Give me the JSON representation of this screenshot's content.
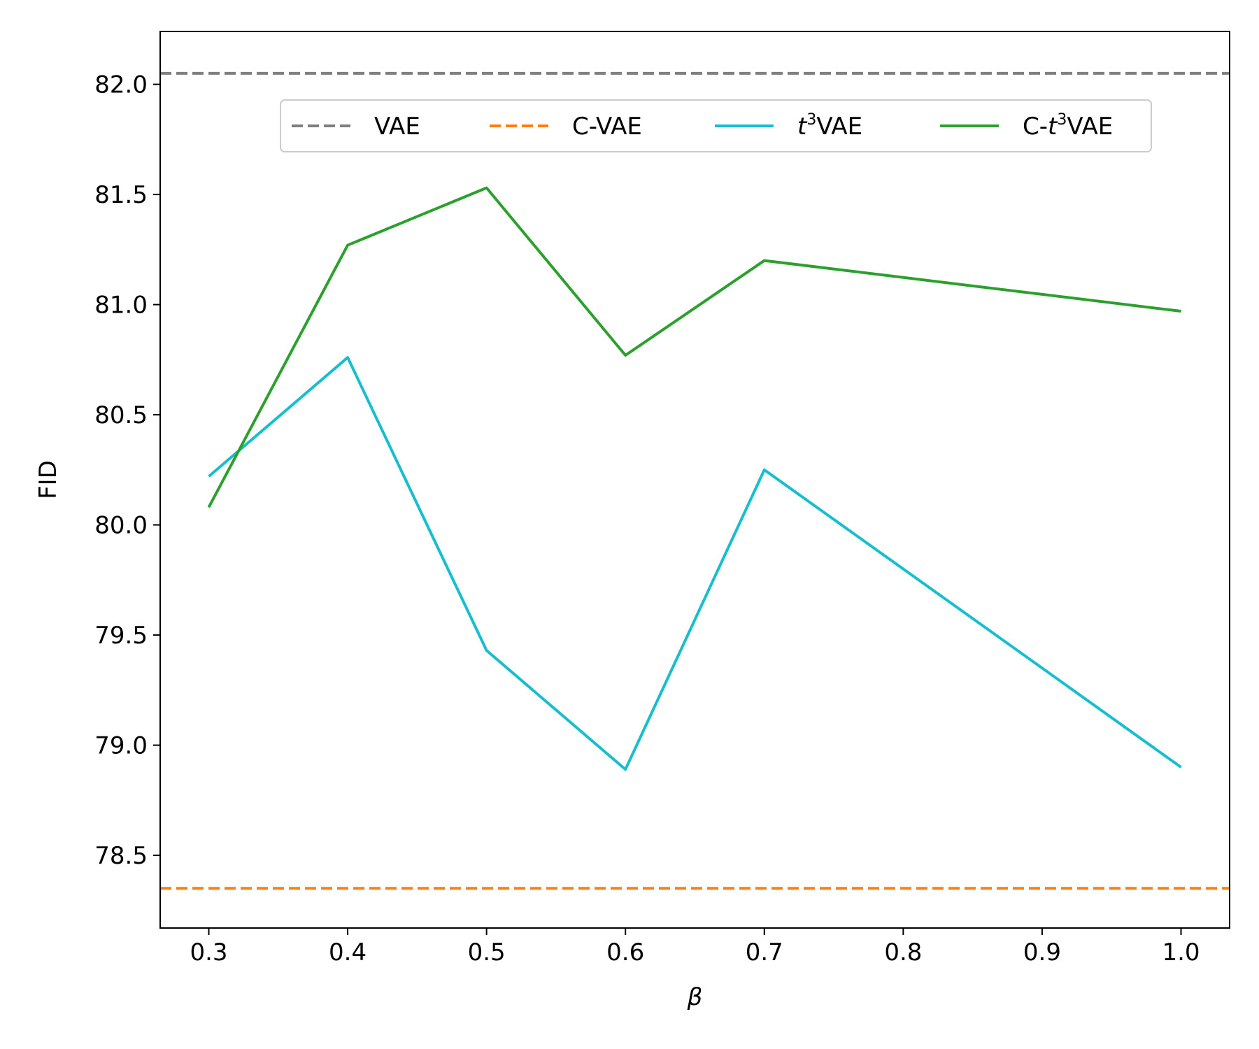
{
  "chart_data": {
    "type": "line",
    "title": "",
    "xlabel": "β",
    "ylabel": "FID",
    "xlim": [
      0.265,
      1.035
    ],
    "ylim": [
      78.17,
      82.24
    ],
    "x_ticks": [
      "0.3",
      "0.4",
      "0.5",
      "0.6",
      "0.7",
      "0.8",
      "0.9",
      "1.0"
    ],
    "y_ticks": [
      "78.5",
      "79.0",
      "79.5",
      "80.0",
      "80.5",
      "81.0",
      "81.5",
      "82.0"
    ],
    "grid": false,
    "legend_position": "upper center",
    "series": [
      {
        "name": "VAE",
        "legend_label": {
          "pre": "",
          "italic": "",
          "sup": "",
          "post": "VAE"
        },
        "color": "#7f7f7f",
        "style": "dashed",
        "kind": "hline",
        "y": 82.05
      },
      {
        "name": "C-VAE",
        "legend_label": {
          "pre": "",
          "italic": "",
          "sup": "",
          "post": "C-VAE"
        },
        "color": "#ff7f0e",
        "style": "dashed",
        "kind": "hline",
        "y": 78.35
      },
      {
        "name": "t³VAE",
        "legend_label": {
          "pre": "",
          "italic": "t",
          "sup": "3",
          "post": "VAE"
        },
        "color": "#17becf",
        "style": "solid",
        "kind": "line",
        "x": [
          0.3,
          0.4,
          0.5,
          0.6,
          0.7,
          1.0
        ],
        "y": [
          80.22,
          80.76,
          79.43,
          78.89,
          80.25,
          78.9
        ]
      },
      {
        "name": "C-t³VAE",
        "legend_label": {
          "pre": "C-",
          "italic": "t",
          "sup": "3",
          "post": "VAE"
        },
        "color": "#2ca02c",
        "style": "solid",
        "kind": "line",
        "x": [
          0.3,
          0.4,
          0.5,
          0.6,
          0.7,
          1.0
        ],
        "y": [
          80.08,
          81.27,
          81.53,
          80.77,
          81.2,
          80.97
        ]
      }
    ]
  }
}
